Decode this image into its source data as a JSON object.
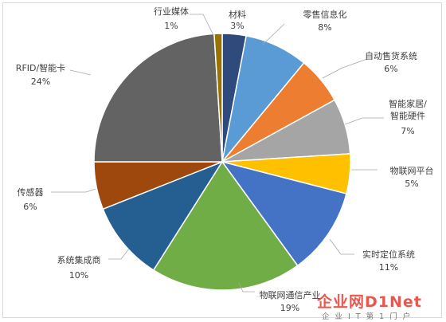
{
  "chart_data": {
    "type": "pie",
    "title": "",
    "colors": [
      "#e63a2e",
      "#777777"
    ],
    "slices": [
      {
        "name": "材料",
        "value": 3,
        "label": "3%",
        "color": "#2f4b7c"
      },
      {
        "name": "零售信息化",
        "value": 8,
        "label": "8%",
        "color": "#5b9bd5"
      },
      {
        "name": "自动售货系统",
        "value": 6,
        "label": "6%",
        "color": "#ed7d31"
      },
      {
        "name": "智能家居/智能硬件",
        "value": 7,
        "label": "7%",
        "color": "#a5a5a5"
      },
      {
        "name": "物联网平台",
        "value": 5,
        "label": "5%",
        "color": "#ffc000"
      },
      {
        "name": "实时定位系统",
        "value": 11,
        "label": "11%",
        "color": "#4472c4"
      },
      {
        "name": "物联网通信产业",
        "value": 19,
        "label": "19%",
        "color": "#70ad47"
      },
      {
        "name": "系统集成商",
        "value": 10,
        "label": "10%",
        "color": "#255e91"
      },
      {
        "name": "传感器",
        "value": 6,
        "label": "6%",
        "color": "#9e480e"
      },
      {
        "name": "RFID/智能卡",
        "value": 24,
        "label": "24%",
        "color": "#636363"
      },
      {
        "name": "行业媒体",
        "value": 1,
        "label": "1%",
        "color": "#997300"
      }
    ]
  },
  "watermark": {
    "brand": "企业网D1Net",
    "tagline": "企业IT第1门户"
  }
}
